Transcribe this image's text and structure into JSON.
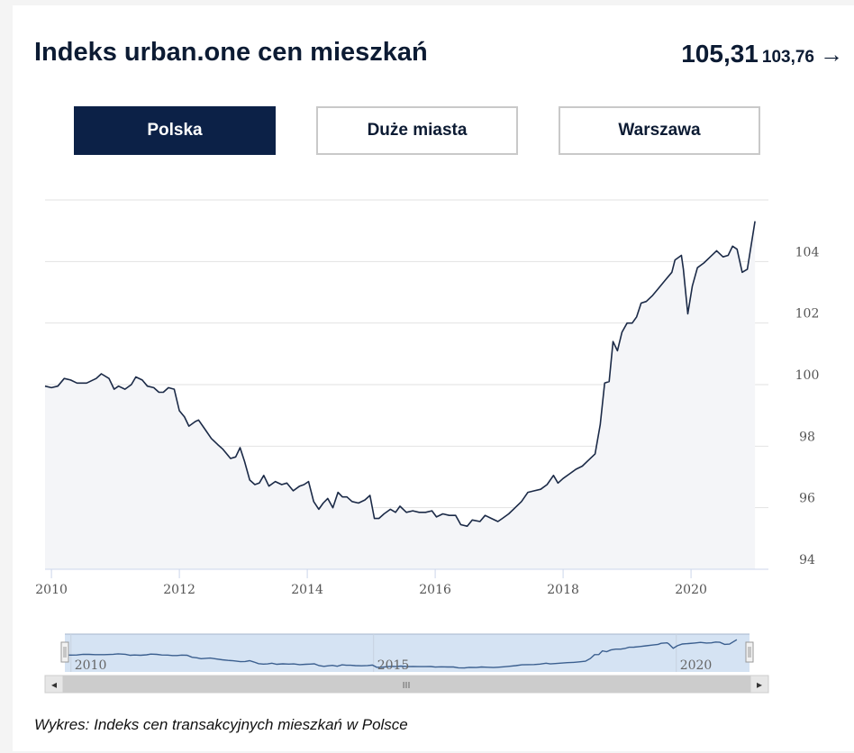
{
  "header": {
    "title": "Indeks urban.one cen mieszkań",
    "current_value": "105,31",
    "previous_value": "103,76",
    "arrow": "→"
  },
  "tabs": [
    {
      "label": "Polska",
      "active": true
    },
    {
      "label": "Duże miasta",
      "active": false
    },
    {
      "label": "Warszawa",
      "active": false
    }
  ],
  "caption": "Wykres: Indeks cen transakcyjnych mieszkań w Polsce",
  "colors": {
    "line": "#1b2a47",
    "area": "#f4f5f8",
    "grid": "#e2e2e2",
    "active_tab": "#0c2147",
    "navigator_mask": "#d5e3f3"
  },
  "chart_data": {
    "type": "area",
    "title": "",
    "xlabel": "",
    "ylabel": "",
    "xlim": [
      2009.9,
      2021.21
    ],
    "ylim": [
      94,
      106
    ],
    "yticks": [
      94,
      96,
      98,
      100,
      102,
      104
    ],
    "ytick_labels": [
      "94",
      "96",
      "98",
      "100",
      "102",
      "104"
    ],
    "xticks": [
      2010,
      2012,
      2014,
      2016,
      2018,
      2020
    ],
    "xtick_labels": [
      "2010",
      "2012",
      "2014",
      "2016",
      "2018",
      "2020"
    ],
    "grid": true,
    "y_axis_position": "right",
    "series": [
      {
        "points": [
          [
            2009.9,
            99.95
          ],
          [
            2010.0,
            99.9
          ],
          [
            2010.1,
            99.95
          ],
          [
            2010.2,
            100.2
          ],
          [
            2010.3,
            100.15
          ],
          [
            2010.4,
            100.05
          ],
          [
            2010.55,
            100.05
          ],
          [
            2010.7,
            100.2
          ],
          [
            2010.78,
            100.35
          ],
          [
            2010.9,
            100.2
          ],
          [
            2010.98,
            99.85
          ],
          [
            2011.05,
            99.95
          ],
          [
            2011.15,
            99.85
          ],
          [
            2011.25,
            100.0
          ],
          [
            2011.32,
            100.25
          ],
          [
            2011.42,
            100.15
          ],
          [
            2011.5,
            99.95
          ],
          [
            2011.6,
            99.9
          ],
          [
            2011.68,
            99.75
          ],
          [
            2011.75,
            99.75
          ],
          [
            2011.83,
            99.9
          ],
          [
            2011.92,
            99.85
          ],
          [
            2012.0,
            99.15
          ],
          [
            2012.08,
            98.95
          ],
          [
            2012.15,
            98.65
          ],
          [
            2012.25,
            98.8
          ],
          [
            2012.3,
            98.85
          ],
          [
            2012.4,
            98.55
          ],
          [
            2012.5,
            98.25
          ],
          [
            2012.6,
            98.05
          ],
          [
            2012.68,
            97.9
          ],
          [
            2012.8,
            97.6
          ],
          [
            2012.88,
            97.65
          ],
          [
            2012.95,
            97.95
          ],
          [
            2013.02,
            97.5
          ],
          [
            2013.1,
            96.9
          ],
          [
            2013.18,
            96.75
          ],
          [
            2013.25,
            96.8
          ],
          [
            2013.32,
            97.05
          ],
          [
            2013.4,
            96.7
          ],
          [
            2013.5,
            96.85
          ],
          [
            2013.6,
            96.75
          ],
          [
            2013.68,
            96.8
          ],
          [
            2013.78,
            96.55
          ],
          [
            2013.88,
            96.7
          ],
          [
            2013.95,
            96.75
          ],
          [
            2014.02,
            96.85
          ],
          [
            2014.1,
            96.2
          ],
          [
            2014.18,
            95.95
          ],
          [
            2014.25,
            96.15
          ],
          [
            2014.32,
            96.3
          ],
          [
            2014.4,
            96.0
          ],
          [
            2014.48,
            96.5
          ],
          [
            2014.55,
            96.35
          ],
          [
            2014.62,
            96.35
          ],
          [
            2014.7,
            96.2
          ],
          [
            2014.8,
            96.15
          ],
          [
            2014.9,
            96.25
          ],
          [
            2014.98,
            96.4
          ],
          [
            2015.05,
            95.65
          ],
          [
            2015.12,
            95.65
          ],
          [
            2015.2,
            95.8
          ],
          [
            2015.3,
            95.95
          ],
          [
            2015.38,
            95.85
          ],
          [
            2015.45,
            96.05
          ],
          [
            2015.55,
            95.85
          ],
          [
            2015.65,
            95.9
          ],
          [
            2015.75,
            95.85
          ],
          [
            2015.85,
            95.85
          ],
          [
            2015.95,
            95.9
          ],
          [
            2016.02,
            95.7
          ],
          [
            2016.12,
            95.8
          ],
          [
            2016.22,
            95.75
          ],
          [
            2016.32,
            95.75
          ],
          [
            2016.4,
            95.45
          ],
          [
            2016.5,
            95.4
          ],
          [
            2016.58,
            95.6
          ],
          [
            2016.7,
            95.55
          ],
          [
            2016.78,
            95.75
          ],
          [
            2016.88,
            95.65
          ],
          [
            2016.98,
            95.55
          ],
          [
            2017.05,
            95.65
          ],
          [
            2017.15,
            95.8
          ],
          [
            2017.25,
            96.0
          ],
          [
            2017.35,
            96.2
          ],
          [
            2017.45,
            96.5
          ],
          [
            2017.55,
            96.55
          ],
          [
            2017.65,
            96.6
          ],
          [
            2017.75,
            96.75
          ],
          [
            2017.85,
            97.05
          ],
          [
            2017.92,
            96.8
          ],
          [
            2018.0,
            96.95
          ],
          [
            2018.1,
            97.1
          ],
          [
            2018.2,
            97.25
          ],
          [
            2018.3,
            97.35
          ],
          [
            2018.4,
            97.55
          ],
          [
            2018.5,
            97.75
          ],
          [
            2018.58,
            98.7
          ],
          [
            2018.65,
            100.05
          ],
          [
            2018.72,
            100.1
          ],
          [
            2018.78,
            101.4
          ],
          [
            2018.85,
            101.1
          ],
          [
            2018.92,
            101.7
          ],
          [
            2019.0,
            102.0
          ],
          [
            2019.08,
            102.0
          ],
          [
            2019.15,
            102.2
          ],
          [
            2019.22,
            102.65
          ],
          [
            2019.3,
            102.7
          ],
          [
            2019.4,
            102.9
          ],
          [
            2019.5,
            103.15
          ],
          [
            2019.6,
            103.4
          ],
          [
            2019.7,
            103.65
          ],
          [
            2019.75,
            104.05
          ],
          [
            2019.85,
            104.2
          ],
          [
            2019.88,
            103.75
          ],
          [
            2019.95,
            102.3
          ],
          [
            2020.02,
            103.2
          ],
          [
            2020.1,
            103.8
          ],
          [
            2020.2,
            103.95
          ],
          [
            2020.3,
            104.15
          ],
          [
            2020.4,
            104.35
          ],
          [
            2020.5,
            104.15
          ],
          [
            2020.58,
            104.2
          ],
          [
            2020.65,
            104.5
          ],
          [
            2020.72,
            104.4
          ],
          [
            2020.8,
            103.65
          ],
          [
            2020.88,
            103.75
          ],
          [
            2021.0,
            105.31
          ]
        ]
      }
    ],
    "navigator": {
      "xticks": [
        2010,
        2015,
        2020
      ],
      "xtick_labels": [
        "2010",
        "2015",
        "2020"
      ],
      "scrollbar_glyph": "III",
      "left_arrow": "◂",
      "right_arrow": "▸"
    }
  }
}
